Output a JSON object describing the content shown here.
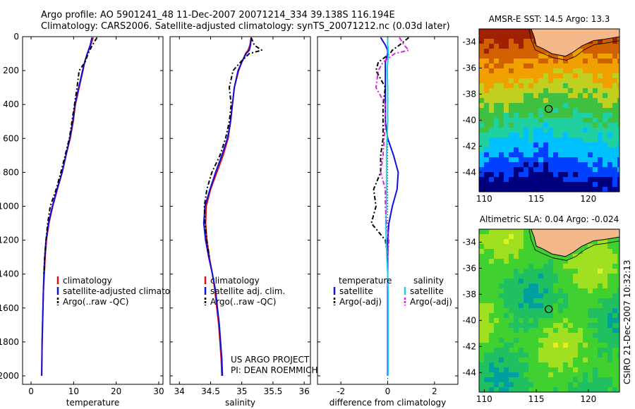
{
  "header": {
    "line1": "Argo profile: AO 5901241_48 11-Dec-2007 20071214_334 39.138S 116.194E",
    "line2": "Climatology: CARS2006. Satellite-adjusted climatology: synTS_20071212.nc (0.03d later)"
  },
  "colors": {
    "climatology": "#e01010",
    "satellite": "#1010e0",
    "argo": "#000000",
    "satellite_salinity": "#20d0e0",
    "argo_salinity_adj": "#e020e0",
    "land": "#f5b88a"
  },
  "chart_data": [
    {
      "type": "line",
      "id": "temperature",
      "xlabel": "temperature",
      "ylabel": "",
      "xlim": [
        -2,
        31
      ],
      "ylim": [
        0,
        2050
      ],
      "y_inverted": true,
      "xticks": [
        "0",
        "10",
        "20",
        "30"
      ],
      "yticks": [
        "0",
        "200",
        "400",
        "600",
        "800",
        "1000",
        "1200",
        "1400",
        "1600",
        "1800",
        "2000"
      ],
      "y_pressure": [
        5,
        50,
        100,
        150,
        200,
        300,
        400,
        500,
        600,
        700,
        800,
        900,
        1000,
        1100,
        1200,
        1300,
        1400,
        1500,
        1600,
        1700,
        1800,
        1900,
        2000
      ],
      "series": [
        {
          "name": "climatology",
          "values": [
            14.6,
            14.0,
            13.2,
            12.6,
            12.2,
            11.3,
            10.4,
            9.9,
            9.2,
            8.2,
            7.3,
            6.2,
            5.1,
            4.2,
            3.6,
            3.3,
            3.1,
            2.9,
            2.8,
            2.7,
            2.6,
            2.55,
            2.5
          ]
        },
        {
          "name": "satellite-adjusted climatology",
          "values": [
            14.3,
            13.9,
            13.2,
            12.6,
            12.1,
            11.2,
            10.3,
            9.8,
            9.1,
            8.2,
            7.3,
            6.1,
            5.0,
            4.1,
            3.5,
            3.2,
            3.0,
            2.9,
            2.8,
            2.7,
            2.6,
            2.55,
            2.5
          ]
        },
        {
          "name": "Argo(..raw -QC)",
          "values": [
            15.5,
            14.4,
            13.4,
            12.7,
            11.3,
            10.8,
            10.2,
            9.6,
            9.0,
            8.0,
            7.0,
            5.9,
            4.5,
            3.9,
            3.5,
            3.2,
            3.0
          ]
        }
      ],
      "legend": [
        "climatology",
        "satellite-adjusted climatology",
        "Argo(..raw -QC)"
      ],
      "legend_position": "lower-right"
    },
    {
      "type": "line",
      "id": "salinity",
      "xlabel": "salinity",
      "ylabel": "",
      "xlim": [
        33.85,
        36.1
      ],
      "ylim": [
        0,
        2050
      ],
      "y_inverted": true,
      "xticks": [
        "34",
        "34.5",
        "35",
        "35.5",
        "36"
      ],
      "y_pressure": [
        5,
        50,
        80,
        100,
        150,
        200,
        300,
        400,
        500,
        600,
        700,
        800,
        900,
        1000,
        1100,
        1200,
        1300,
        1400,
        1500,
        1600,
        1700,
        1800,
        1900,
        2000
      ],
      "series": [
        {
          "name": "climatology",
          "values": [
            35.15,
            35.13,
            35.1,
            35.06,
            35.0,
            34.95,
            34.88,
            34.85,
            34.82,
            34.78,
            34.7,
            34.6,
            34.5,
            34.43,
            34.42,
            34.44,
            34.48,
            34.53,
            34.57,
            34.6,
            34.63,
            34.65,
            34.67,
            34.68
          ]
        },
        {
          "name": "satellite adj. clim.",
          "values": [
            35.15,
            35.14,
            35.12,
            35.07,
            35.0,
            34.94,
            34.88,
            34.85,
            34.82,
            34.77,
            34.68,
            34.58,
            34.49,
            34.41,
            34.39,
            34.42,
            34.47,
            34.53,
            34.58,
            34.61,
            34.64,
            34.66,
            34.68,
            34.69
          ]
        },
        {
          "name": "Argo(..raw -QC)",
          "values": [
            35.15,
            35.2,
            35.32,
            35.12,
            34.98,
            34.86,
            34.8,
            34.83,
            34.8,
            34.74,
            34.65,
            34.52,
            34.44,
            34.4,
            34.41,
            34.44,
            34.48
          ]
        }
      ],
      "legend": [
        "climatology",
        "satellite adj. clim.",
        "Argo(..raw -QC)"
      ],
      "legend_position": "lower-right",
      "annotation": [
        "US ARGO PROJECT",
        "PI: DEAN ROEMMICH"
      ]
    },
    {
      "type": "line",
      "id": "difference",
      "xlabel": "difference from climatology",
      "ylabel": "",
      "xlim": [
        -3,
        3
      ],
      "ylim": [
        0,
        2050
      ],
      "y_inverted": true,
      "xticks": [
        "-2",
        "0",
        "2"
      ],
      "y_pressure": [
        5,
        50,
        80,
        100,
        150,
        200,
        300,
        400,
        500,
        600,
        700,
        800,
        900,
        1000,
        1100,
        1200,
        1300,
        1400,
        1500,
        1600,
        1700,
        1800,
        1900,
        2000
      ],
      "series": [
        {
          "name": "temperature satellite",
          "values": [
            -0.3,
            -0.1,
            0.0,
            0.0,
            -0.1,
            -0.1,
            -0.1,
            -0.1,
            -0.1,
            0.0,
            0.25,
            0.45,
            0.4,
            0.2,
            0.05,
            0.0,
            0.0,
            0.0,
            0.0,
            0.0,
            0.0,
            0.0,
            0.0,
            0.0
          ]
        },
        {
          "name": "temperature Argo(-adj)",
          "values": [
            0.9,
            0.5,
            0.2,
            0.1,
            -0.4,
            -0.5,
            -0.1,
            -0.2,
            -0.2,
            -0.2,
            -0.3,
            -0.3,
            -0.6,
            -0.5,
            -0.7,
            -0.1,
            0.0
          ]
        },
        {
          "name": "salinity satellite",
          "values": [
            0.0,
            0.0,
            0.02,
            0.03,
            0.0,
            -0.02,
            0.0,
            0.0,
            0.0,
            -0.03,
            -0.05,
            -0.05,
            -0.05,
            -0.05,
            -0.08,
            -0.06,
            -0.04,
            0.0,
            0.02,
            0.02,
            0.02,
            0.02,
            0.02,
            0.02
          ]
        },
        {
          "name": "salinity Argo(-adj)",
          "values": [
            0.5,
            0.7,
            0.9,
            0.3,
            -0.2,
            -0.4,
            -0.5,
            -0.1,
            -0.1,
            -0.15,
            -0.2,
            -0.3,
            -0.1,
            -0.1,
            -0.05,
            0.05,
            0.0
          ]
        }
      ],
      "legend_left_title": "temperature",
      "legend_right_title": "salinity",
      "legend_left": [
        "satellite",
        "Argo(-adj)"
      ],
      "legend_right": [
        "satellite",
        "Argo(-adj)"
      ],
      "legend_position": "lower-center"
    },
    {
      "type": "heatmap",
      "id": "sst-map",
      "title": "AMSR-E SST: 14.5 Argo: 13.3",
      "xlim": [
        109.5,
        123
      ],
      "ylim": [
        -45.5,
        -33
      ],
      "xticks": [
        "110",
        "115",
        "120"
      ],
      "yticks": [
        "-34",
        "-36",
        "-38",
        "-40",
        "-42",
        "-44"
      ],
      "float_lon": 116.194,
      "float_lat": -39.138,
      "colorscale": [
        "#00007f",
        "#0040ff",
        "#00c0ff",
        "#20d0a0",
        "#40c040",
        "#c0d020",
        "#f0a000",
        "#d06000",
        "#a02000"
      ]
    },
    {
      "type": "heatmap",
      "id": "sla-map",
      "title": "Altimetric SLA: 0.04 Argo: -0.024",
      "xlim": [
        109.5,
        123
      ],
      "ylim": [
        -45.5,
        -33
      ],
      "xticks": [
        "110",
        "115",
        "120"
      ],
      "yticks": [
        "-34",
        "-36",
        "-38",
        "-40",
        "-42",
        "-44"
      ],
      "float_lon": 116.194,
      "float_lat": -39.138,
      "colorscale": [
        "#00a0a0",
        "#20c060",
        "#40d030",
        "#a0e020",
        "#e0f020"
      ]
    }
  ],
  "footer": {
    "stamp": "CSIRO 21-Dec-2007 10:32:13"
  }
}
